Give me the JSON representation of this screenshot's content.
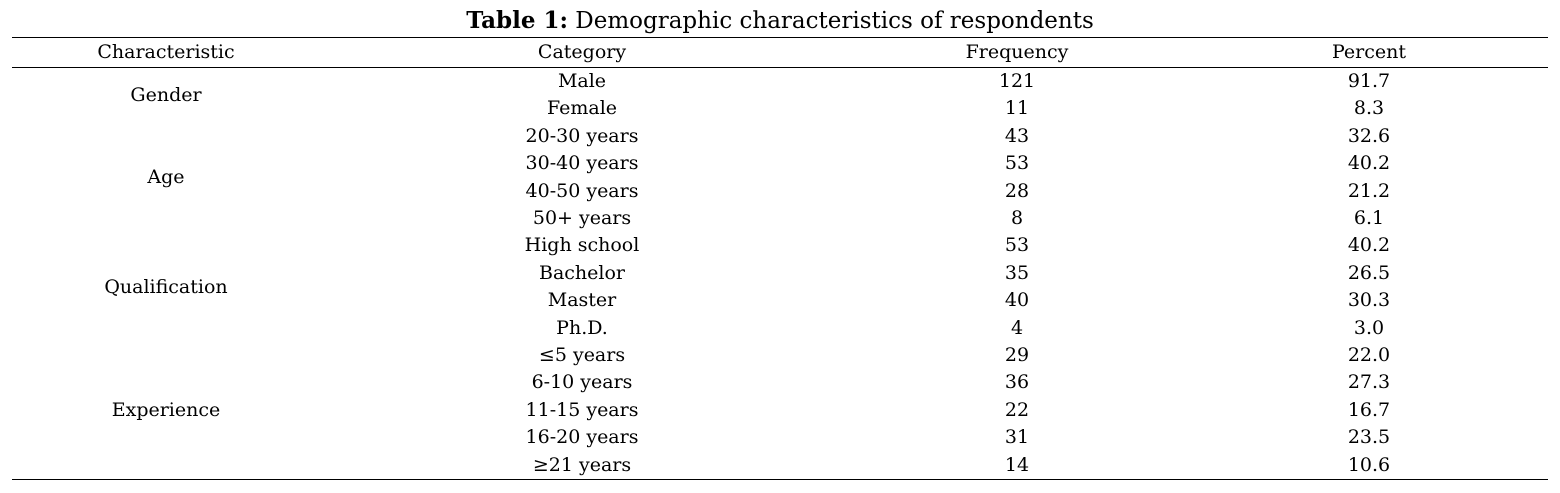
{
  "title": {
    "label": "Table 1:",
    "text": " Demographic characteristics of respondents"
  },
  "table": {
    "headers": [
      "Characteristic",
      "Category",
      "Frequency",
      "Percent"
    ],
    "groups": [
      {
        "characteristic": "Gender",
        "rows": [
          {
            "category": "Male",
            "frequency": "121",
            "percent": "91.7"
          },
          {
            "category": "Female",
            "frequency": "11",
            "percent": "8.3"
          }
        ]
      },
      {
        "characteristic": "Age",
        "rows": [
          {
            "category": "20-30 years",
            "frequency": "43",
            "percent": "32.6"
          },
          {
            "category": "30-40 years",
            "frequency": "53",
            "percent": "40.2"
          },
          {
            "category": "40-50 years",
            "frequency": "28",
            "percent": "21.2"
          },
          {
            "category": "50+ years",
            "frequency": "8",
            "percent": "6.1"
          }
        ]
      },
      {
        "characteristic": "Qualification",
        "rows": [
          {
            "category": "High school",
            "frequency": "53",
            "percent": "40.2"
          },
          {
            "category": "Bachelor",
            "frequency": "35",
            "percent": "26.5"
          },
          {
            "category": "Master",
            "frequency": "40",
            "percent": "30.3"
          },
          {
            "category": "Ph.D.",
            "frequency": "4",
            "percent": "3.0"
          }
        ]
      },
      {
        "characteristic": "Experience",
        "rows": [
          {
            "category": "≤5 years",
            "frequency": "29",
            "percent": "22.0"
          },
          {
            "category": "6-10 years",
            "frequency": "36",
            "percent": "27.3"
          },
          {
            "category": "11-15 years",
            "frequency": "22",
            "percent": "16.7"
          },
          {
            "category": "16-20 years",
            "frequency": "31",
            "percent": "23.5"
          },
          {
            "category": "≥21 years",
            "frequency": "14",
            "percent": "10.6"
          }
        ]
      }
    ]
  }
}
